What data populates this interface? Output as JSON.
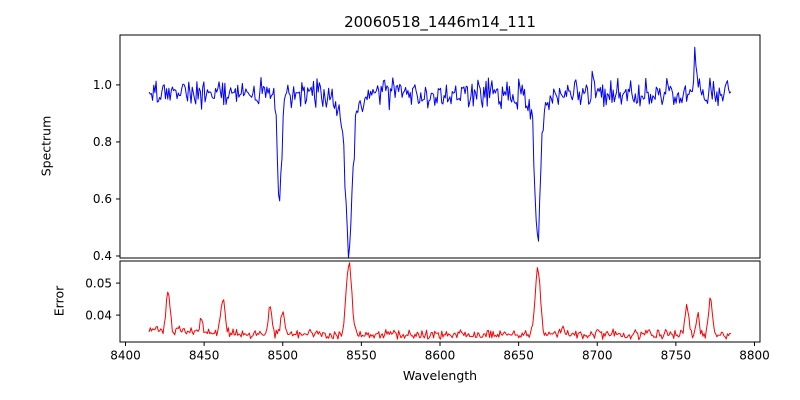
{
  "figure": {
    "background": "#ffffff"
  },
  "chart_data": {
    "type": "line",
    "title": "20060518_1446m14_111",
    "xlabel": "Wavelength",
    "xlim": [
      8396.5,
      8803.5
    ],
    "x_ticks": {
      "values": [
        8400,
        8450,
        8500,
        8550,
        8600,
        8650,
        8700,
        8750,
        8800
      ],
      "labels": [
        "8400",
        "8450",
        "8500",
        "8550",
        "8600",
        "8650",
        "8700",
        "8750",
        "8800"
      ]
    },
    "subplots": [
      {
        "name": "spectrum",
        "ylabel": "Spectrum",
        "line_color": "#0000ff",
        "ylim": [
          0.393,
          1.175
        ],
        "y_ticks": {
          "values": [
            0.4,
            0.6,
            0.8,
            1.0
          ],
          "labels": [
            "0.4",
            "0.6",
            "0.8",
            "1.0"
          ]
        },
        "series": {
          "x_start": 8415,
          "x_end": 8785,
          "n": 500,
          "baseline": 0.972,
          "noise": 0.031,
          "seed": 20060518,
          "features": [
            {
              "center": 8498.0,
              "amp": -0.38,
              "sigma": 1.3
            },
            {
              "center": 8542.1,
              "amp": -0.46,
              "sigma": 2.1
            },
            {
              "center": 8542.1,
              "amp": -0.085,
              "sigma": 6.0
            },
            {
              "center": 8662.1,
              "amp": -0.45,
              "sigma": 1.7
            },
            {
              "center": 8662.1,
              "amp": -0.06,
              "sigma": 5.0
            },
            {
              "center": 8697.0,
              "amp": 0.07,
              "sigma": 0.7
            },
            {
              "center": 8762.0,
              "amp": 0.16,
              "sigma": 0.7
            }
          ]
        }
      },
      {
        "name": "error",
        "ylabel": "Error",
        "line_color": "#ff0000",
        "ylim": [
          0.0316,
          0.0569
        ],
        "y_ticks": {
          "values": [
            0.04,
            0.05
          ],
          "labels": [
            "0.04",
            "0.05"
          ]
        },
        "series": {
          "x_start": 8415,
          "x_end": 8785,
          "n": 500,
          "baseline": 0.034,
          "noise": 0.0009,
          "seed": 1446,
          "features": [
            {
              "center": 8420.0,
              "amp": 0.0012,
              "sigma": 30
            },
            {
              "center": 8427.0,
              "amp": 0.0125,
              "sigma": 1.2
            },
            {
              "center": 8448.0,
              "amp": 0.004,
              "sigma": 1.0
            },
            {
              "center": 8462.0,
              "amp": 0.0105,
              "sigma": 1.3
            },
            {
              "center": 8492.0,
              "amp": 0.0085,
              "sigma": 1.2
            },
            {
              "center": 8500.0,
              "amp": 0.0075,
              "sigma": 1.2
            },
            {
              "center": 8542.1,
              "amp": 0.022,
              "sigma": 1.8
            },
            {
              "center": 8662.1,
              "amp": 0.0205,
              "sigma": 1.6
            },
            {
              "center": 8678.0,
              "amp": 0.003,
              "sigma": 1.0
            },
            {
              "center": 8757.0,
              "amp": 0.009,
              "sigma": 1.2
            },
            {
              "center": 8764.0,
              "amp": 0.007,
              "sigma": 1.0
            },
            {
              "center": 8772.0,
              "amp": 0.011,
              "sigma": 1.3
            }
          ]
        }
      }
    ]
  }
}
